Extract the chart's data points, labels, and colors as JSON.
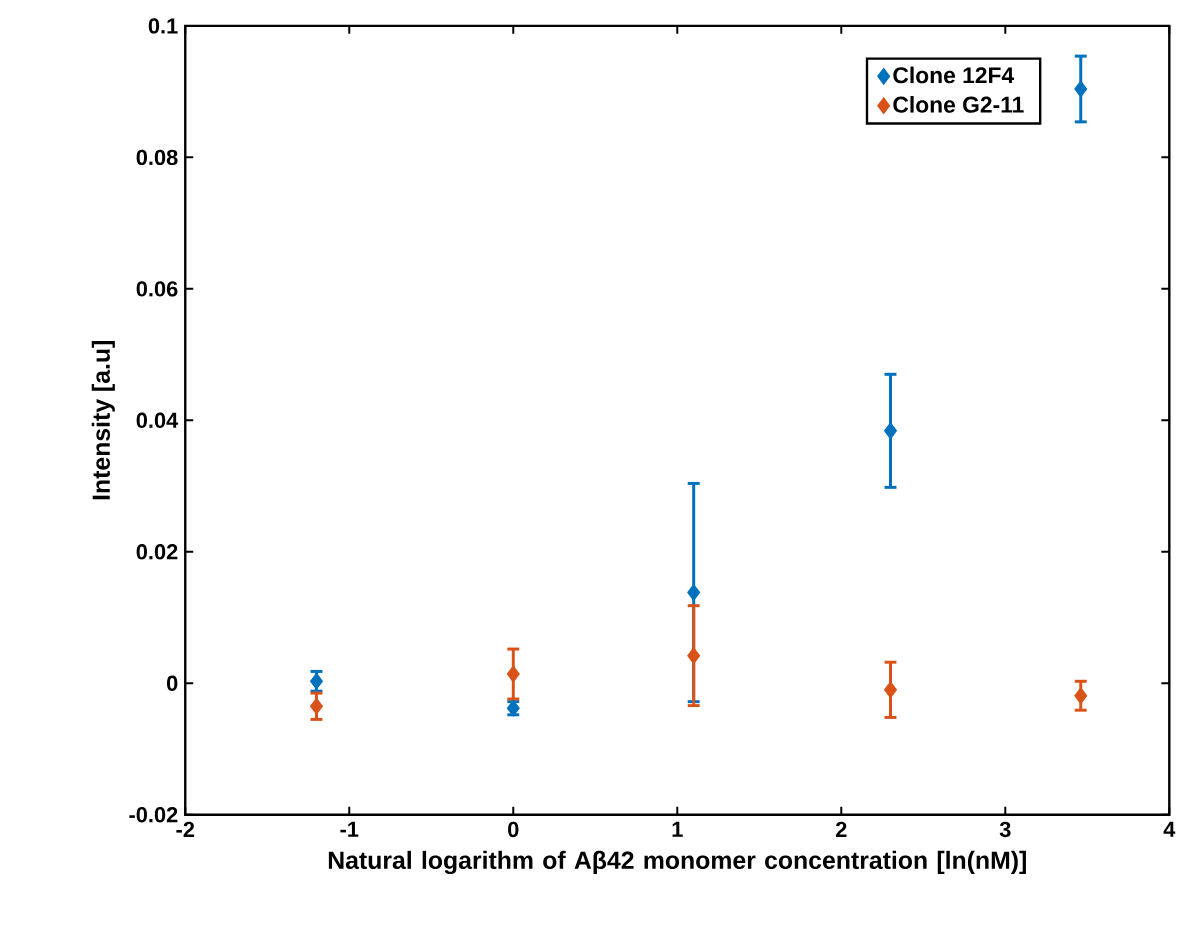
{
  "chart_data": {
    "type": "scatter",
    "xlabel": "Natural logarithm of Aβ42 monomer concentration [ln(nM)]",
    "ylabel": "Intensity [a.u]",
    "x": [
      -1.2,
      0,
      1.1,
      2.3,
      3.46
    ],
    "series": [
      {
        "name": "Clone 12F4",
        "color": "#0072bd",
        "values": [
          0.0003,
          -0.0038,
          0.0138,
          0.0384,
          0.0904
        ],
        "errors": [
          0.0015,
          0.001,
          0.0166,
          0.0086,
          0.005
        ]
      },
      {
        "name": "Clone G2-11",
        "color": "#d95319",
        "values": [
          -0.0035,
          0.0014,
          0.0042,
          -0.001,
          -0.0019
        ],
        "errors": [
          0.002,
          0.0038,
          0.0076,
          0.0042,
          0.0022
        ]
      }
    ],
    "xlim": [
      -2,
      4
    ],
    "ylim": [
      -0.02,
      0.1
    ],
    "xticks": [
      -2,
      -1,
      0,
      1,
      2,
      3,
      4
    ],
    "yticks": [
      -0.02,
      0,
      0.02,
      0.04,
      0.06,
      0.08,
      0.1
    ],
    "marker": "diamond",
    "grid": false,
    "legend": "top right"
  }
}
